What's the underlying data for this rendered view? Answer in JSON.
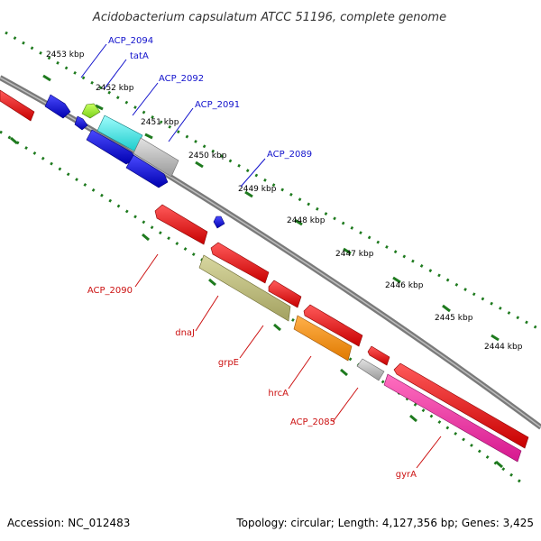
{
  "title": "Acidobacterium capsulatum ATCC 51196, complete genome",
  "colors": {
    "backbone": "#7a7a7a",
    "dots": "#1e7a1e",
    "forward_label": "#1111cc",
    "reverse_label": "#cc1111"
  },
  "scale_ticks": [
    "2453 kbp",
    "2452 kbp",
    "2451 kbp",
    "2450 kbp",
    "2449 kbp",
    "2448 kbp",
    "2447 kbp",
    "2446 kbp",
    "2445 kbp",
    "2444 kbp"
  ],
  "gene_labels": [
    {
      "name": "ACP_2094",
      "strand": "forward"
    },
    {
      "name": "tatA",
      "strand": "forward"
    },
    {
      "name": "ACP_2092",
      "strand": "forward"
    },
    {
      "name": "ACP_2091",
      "strand": "forward"
    },
    {
      "name": "ACP_2089",
      "strand": "forward"
    },
    {
      "name": "ACP_2090",
      "strand": "reverse"
    },
    {
      "name": "dnaJ",
      "strand": "reverse"
    },
    {
      "name": "grpE",
      "strand": "reverse"
    },
    {
      "name": "hrcA",
      "strand": "reverse"
    },
    {
      "name": "ACP_2085",
      "strand": "reverse"
    },
    {
      "name": "gyrA",
      "strand": "reverse"
    }
  ],
  "footer": {
    "accession": "Accession: NC_012483",
    "topology": "Topology: circular; Length: 4,127,356 bp; Genes: 3,425"
  }
}
